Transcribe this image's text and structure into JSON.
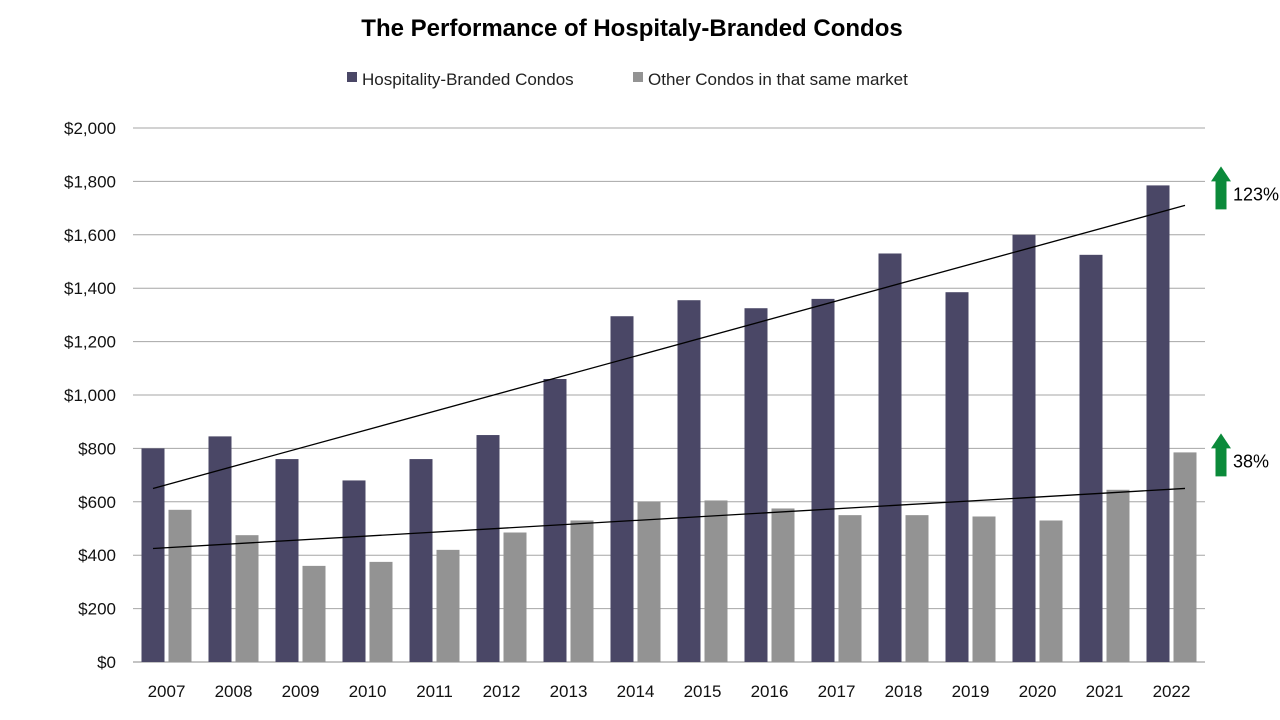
{
  "chart_data": {
    "type": "bar",
    "title": "The Performance of Hospitaly-Branded Condos",
    "xlabel": "",
    "ylabel": "",
    "ylim": [
      0,
      2000
    ],
    "yticks": [
      0,
      200,
      400,
      600,
      800,
      1000,
      1200,
      1400,
      1600,
      1800,
      2000
    ],
    "ytick_labels": [
      "$0",
      "$200",
      "$400",
      "$600",
      "$800",
      "$1,000",
      "$1,200",
      "$1,400",
      "$1,600",
      "$1,800",
      "$2,000"
    ],
    "grid": true,
    "legend_position": "top-center",
    "categories": [
      "2007",
      "2008",
      "2009",
      "2010",
      "2011",
      "2012",
      "2013",
      "2014",
      "2015",
      "2016",
      "2017",
      "2018",
      "2019",
      "2020",
      "2021",
      "2022"
    ],
    "series": [
      {
        "name": "Hospitality-Branded Condos",
        "color": "#4a4766",
        "values": [
          800,
          845,
          760,
          680,
          760,
          850,
          1060,
          1295,
          1355,
          1325,
          1360,
          1530,
          1385,
          1600,
          1525,
          1785
        ]
      },
      {
        "name": "Other Condos in that same market",
        "color": "#939393",
        "values": [
          570,
          475,
          360,
          375,
          420,
          485,
          530,
          600,
          605,
          575,
          550,
          550,
          545,
          530,
          645,
          785
        ]
      }
    ],
    "trendlines": [
      {
        "series": "Hospitality-Branded Condos",
        "start": 650,
        "end": 1710,
        "color": "#000000"
      },
      {
        "series": "Other Condos in that same market",
        "start": 425,
        "end": 650,
        "color": "#000000"
      }
    ],
    "annotations": [
      {
        "label": "123%",
        "at_value": 1800,
        "icon": "up-arrow-icon",
        "color": "#0b8a3a"
      },
      {
        "label": "38%",
        "at_value": 800,
        "icon": "up-arrow-icon",
        "color": "#0b8a3a"
      }
    ]
  }
}
